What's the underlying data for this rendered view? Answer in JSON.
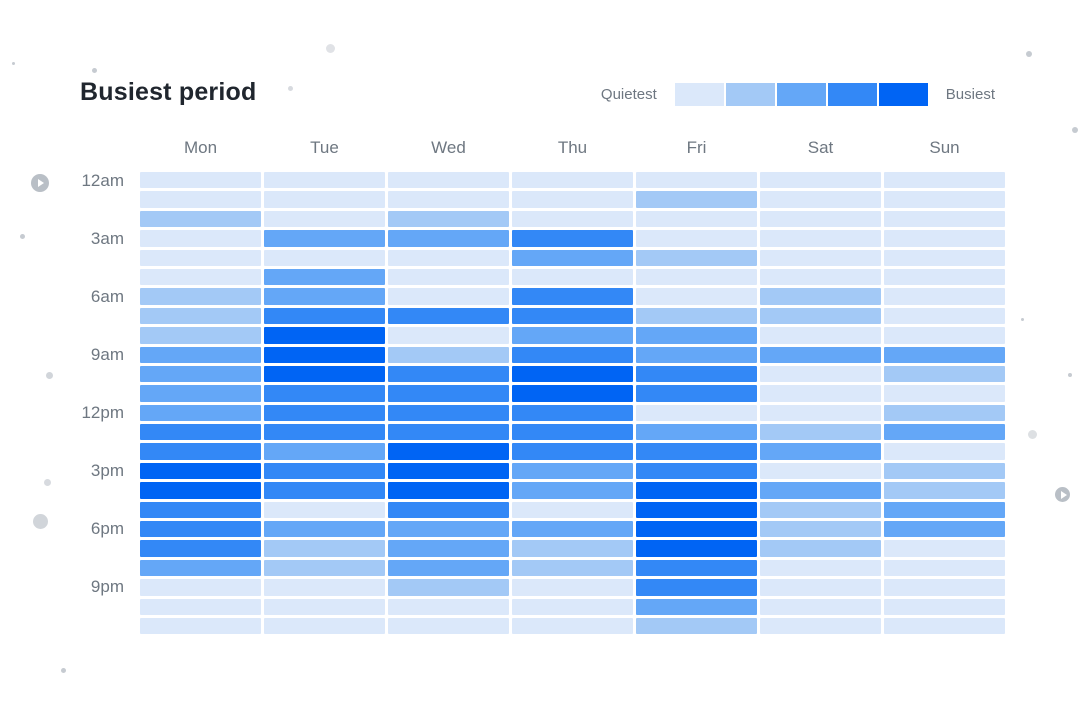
{
  "header": {
    "title": "Busiest period"
  },
  "legend": {
    "quietest_label": "Quietest",
    "busiest_label": "Busiest",
    "level_colors": [
      "#dbe8fa",
      "#a3c9f6",
      "#64a7f7",
      "#3388f6",
      "#0064f4"
    ]
  },
  "chart_data": {
    "type": "heatmap",
    "title": "Busiest period",
    "x_categories": [
      "Mon",
      "Tue",
      "Wed",
      "Thu",
      "Fri",
      "Sat",
      "Sun"
    ],
    "y_axis": {
      "unit": "hour-of-day",
      "rows": 24,
      "first_row": "12am",
      "tick_labels": [
        "12am",
        "3am",
        "6am",
        "9am",
        "12pm",
        "3pm",
        "6pm",
        "9pm"
      ],
      "tick_every": 3
    },
    "scale": {
      "levels": 5,
      "min_label": "Quietest",
      "max_label": "Busiest"
    },
    "series": [
      {
        "name": "Mon",
        "levels": [
          1,
          1,
          2,
          1,
          1,
          1,
          2,
          2,
          2,
          3,
          3,
          3,
          3,
          4,
          4,
          5,
          5,
          4,
          4,
          4,
          3,
          1,
          1,
          1
        ]
      },
      {
        "name": "Tue",
        "levels": [
          1,
          1,
          1,
          3,
          1,
          3,
          3,
          4,
          5,
          5,
          5,
          4,
          4,
          4,
          3,
          4,
          4,
          1,
          3,
          2,
          2,
          1,
          1,
          1
        ]
      },
      {
        "name": "Wed",
        "levels": [
          1,
          1,
          2,
          3,
          1,
          1,
          1,
          4,
          1,
          2,
          4,
          4,
          4,
          4,
          5,
          5,
          5,
          4,
          3,
          3,
          3,
          2,
          1,
          1
        ]
      },
      {
        "name": "Thu",
        "levels": [
          1,
          1,
          1,
          4,
          3,
          1,
          4,
          4,
          3,
          4,
          5,
          5,
          4,
          4,
          4,
          3,
          3,
          1,
          3,
          2,
          2,
          1,
          1,
          1
        ]
      },
      {
        "name": "Fri",
        "levels": [
          1,
          2,
          1,
          1,
          2,
          1,
          1,
          2,
          3,
          3,
          4,
          4,
          1,
          3,
          4,
          4,
          5,
          5,
          5,
          5,
          4,
          4,
          3,
          2
        ]
      },
      {
        "name": "Sat",
        "levels": [
          1,
          1,
          1,
          1,
          1,
          1,
          2,
          2,
          1,
          3,
          1,
          1,
          1,
          2,
          3,
          1,
          3,
          2,
          2,
          2,
          1,
          1,
          1,
          1
        ]
      },
      {
        "name": "Sun",
        "levels": [
          1,
          1,
          1,
          1,
          1,
          1,
          1,
          1,
          1,
          3,
          2,
          1,
          2,
          3,
          1,
          2,
          2,
          3,
          3,
          1,
          1,
          1,
          1,
          1
        ]
      }
    ]
  }
}
